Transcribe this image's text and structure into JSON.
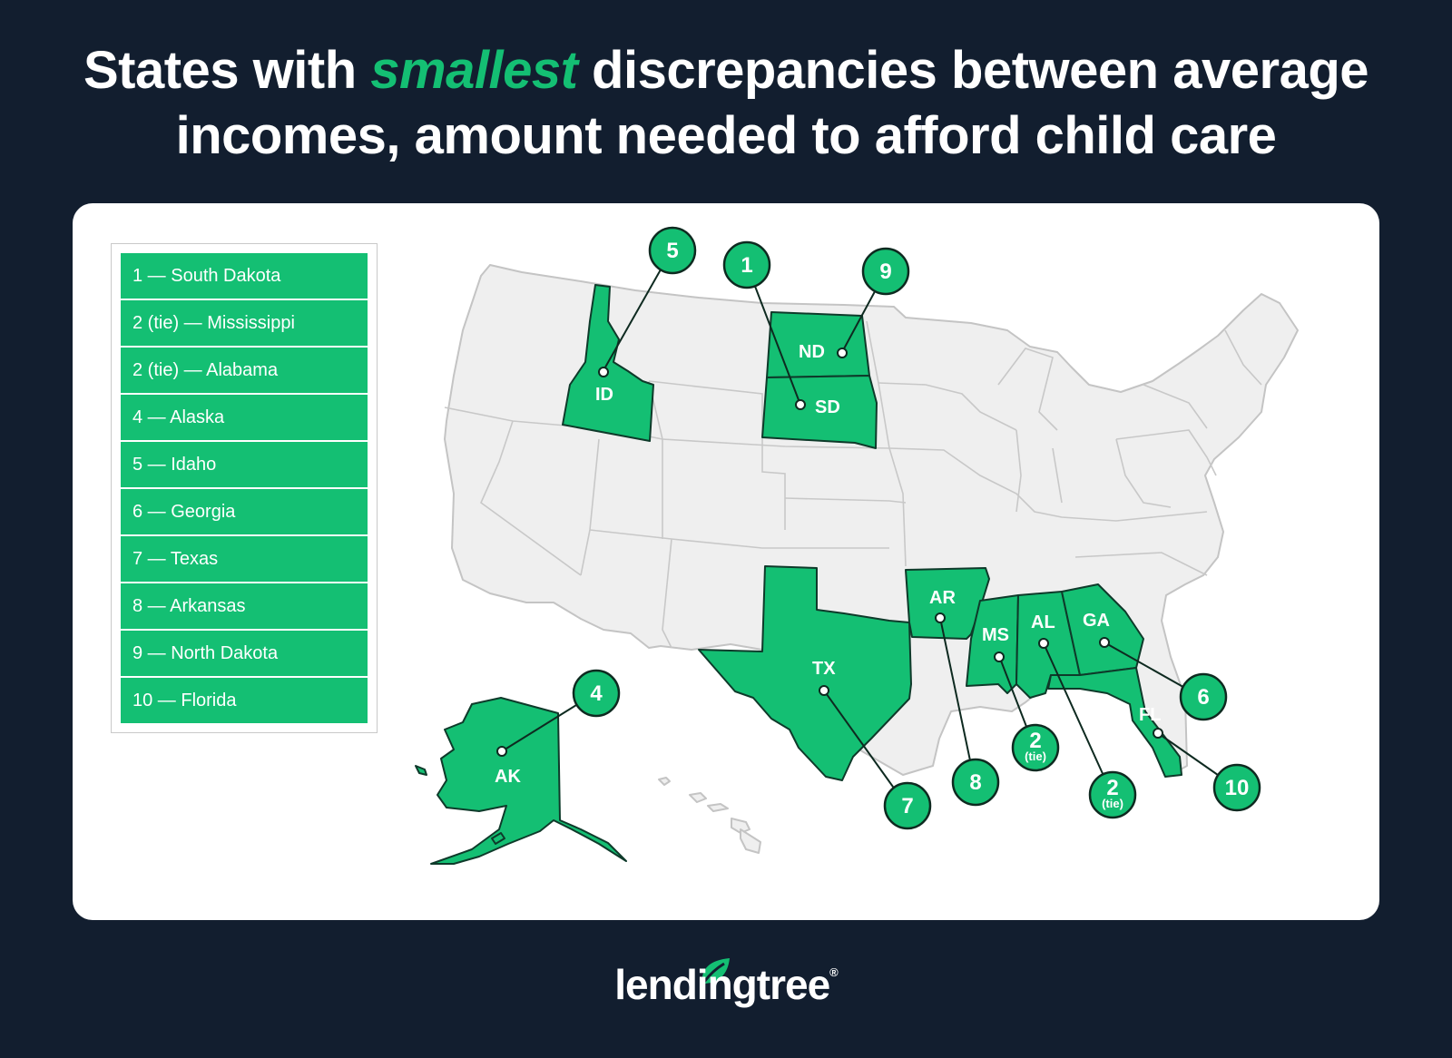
{
  "title": {
    "part1": "States with ",
    "highlight": "smallest",
    "part2": " discrepancies between average",
    "line2": "incomes, amount needed to afford child care"
  },
  "legend": [
    {
      "rank": "1",
      "label": "1 — South Dakota"
    },
    {
      "rank": "2 (tie)",
      "label": "2 (tie) — Mississippi"
    },
    {
      "rank": "2 (tie)",
      "label": "2 (tie) — Alabama"
    },
    {
      "rank": "4",
      "label": "4 — Alaska"
    },
    {
      "rank": "5",
      "label": "5 — Idaho"
    },
    {
      "rank": "6",
      "label": "6 — Georgia"
    },
    {
      "rank": "7",
      "label": "7 — Texas"
    },
    {
      "rank": "8",
      "label": "8 — Arkansas"
    },
    {
      "rank": "9",
      "label": "9 — North Dakota"
    },
    {
      "rank": "10",
      "label": "10 — Florida"
    }
  ],
  "map_labels": {
    "ID": "ID",
    "ND": "ND",
    "SD": "SD",
    "AR": "AR",
    "MS": "MS",
    "AL": "AL",
    "GA": "GA",
    "TX": "TX",
    "FL": "FL",
    "AK": "AK"
  },
  "badges": {
    "ID": {
      "num": "5",
      "sub": ""
    },
    "SD": {
      "num": "1",
      "sub": ""
    },
    "ND": {
      "num": "9",
      "sub": ""
    },
    "AK": {
      "num": "4",
      "sub": ""
    },
    "GA": {
      "num": "6",
      "sub": ""
    },
    "TX": {
      "num": "7",
      "sub": ""
    },
    "AR": {
      "num": "8",
      "sub": ""
    },
    "MS": {
      "num": "2",
      "sub": "(tie)"
    },
    "AL": {
      "num": "2",
      "sub": "(tie)"
    },
    "FL": {
      "num": "10",
      "sub": ""
    }
  },
  "colors": {
    "highlight": "#14bf73",
    "background": "#121e2f",
    "state_default": "#efefef"
  },
  "logo": {
    "text": "lendingtree",
    "reg": "®"
  }
}
